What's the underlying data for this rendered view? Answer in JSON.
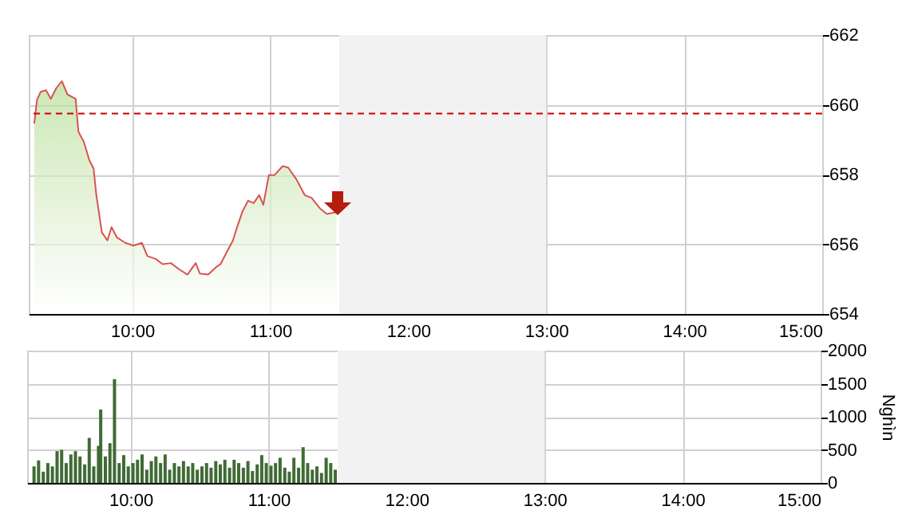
{
  "chart_data": [
    {
      "type": "area",
      "xlim": [
        9.25,
        15
      ],
      "ylim": [
        654,
        662
      ],
      "yticks": [
        654,
        656,
        658,
        660,
        662
      ],
      "grid": true,
      "xticks": [
        {
          "value": 10,
          "label": "10:00"
        },
        {
          "value": 11,
          "label": "11:00"
        },
        {
          "value": 12,
          "label": "12:00"
        },
        {
          "value": 13,
          "label": "13:00"
        },
        {
          "value": 14,
          "label": "14:00"
        },
        {
          "value": 15,
          "label": "15:00"
        }
      ],
      "ref_lines": [
        {
          "axis": "y",
          "value": 659.75,
          "color": "#cc0000",
          "line_style": "dashed"
        }
      ],
      "bands": [
        {
          "axis": "x",
          "from": 11.5,
          "to": 13,
          "color": "#f2f2f2"
        }
      ],
      "series": [
        {
          "color": "#d9534f",
          "x": [
            9.29,
            9.31,
            9.336,
            9.375,
            9.41,
            9.45,
            9.49,
            9.53,
            9.59,
            9.61,
            9.65,
            9.69,
            9.72,
            9.74,
            9.78,
            9.82,
            9.85,
            9.89,
            9.95,
            10.01,
            10.07,
            10.11,
            10.17,
            10.22,
            10.28,
            10.34,
            10.4,
            10.46,
            10.49,
            10.55,
            10.61,
            10.64,
            10.69,
            10.73,
            10.76,
            10.8,
            10.84,
            10.88,
            10.92,
            10.95,
            10.99,
            11.03,
            11.09,
            11.13,
            11.19,
            11.25,
            11.3,
            11.36,
            11.41,
            11.48
          ],
          "values": [
            659.46,
            660.14,
            660.37,
            660.42,
            660.17,
            660.48,
            660.68,
            660.3,
            660.17,
            659.23,
            658.93,
            658.4,
            658.17,
            657.41,
            656.34,
            656.11,
            656.49,
            656.19,
            656.04,
            655.96,
            656.04,
            655.66,
            655.58,
            655.43,
            655.46,
            655.28,
            655.13,
            655.46,
            655.16,
            655.13,
            655.35,
            655.43,
            655.81,
            656.11,
            656.49,
            656.95,
            657.25,
            657.18,
            657.41,
            657.13,
            657.98,
            657.98,
            658.24,
            658.2,
            657.86,
            657.41,
            657.33,
            657.03,
            656.87,
            656.92
          ]
        }
      ]
    },
    {
      "type": "bar",
      "ylabel": "Nghìn",
      "xlim": [
        9.25,
        15
      ],
      "ylim": [
        0,
        2000
      ],
      "yticks": [
        0,
        500,
        1000,
        1500,
        2000
      ],
      "grid": true,
      "xticks": [
        {
          "value": 10,
          "label": "10:00"
        },
        {
          "value": 11,
          "label": "11:00"
        },
        {
          "value": 12,
          "label": "12:00"
        },
        {
          "value": 13,
          "label": "13:00"
        },
        {
          "value": 14,
          "label": "14:00"
        },
        {
          "value": 15,
          "label": "15:00"
        }
      ],
      "bands": [
        {
          "axis": "x",
          "from": 11.5,
          "to": 13,
          "color": "#f2f2f2"
        }
      ],
      "series": [
        {
          "color": "#3f6b35",
          "x": [
            9.3,
            9.333,
            9.367,
            9.4,
            9.433,
            9.467,
            9.5,
            9.533,
            9.567,
            9.6,
            9.633,
            9.667,
            9.7,
            9.733,
            9.767,
            9.783,
            9.817,
            9.85,
            9.883,
            9.917,
            9.95,
            9.983,
            10.017,
            10.05,
            10.083,
            10.117,
            10.15,
            10.183,
            10.217,
            10.25,
            10.283,
            10.317,
            10.35,
            10.383,
            10.417,
            10.45,
            10.483,
            10.517,
            10.55,
            10.583,
            10.617,
            10.65,
            10.683,
            10.717,
            10.75,
            10.783,
            10.817,
            10.85,
            10.883,
            10.917,
            10.95,
            10.983,
            11.017,
            11.05,
            11.083,
            11.117,
            11.15,
            11.183,
            11.217,
            11.25,
            11.283,
            11.317,
            11.35,
            11.383,
            11.417,
            11.45,
            11.483
          ],
          "values": [
            250,
            340,
            170,
            300,
            250,
            480,
            500,
            300,
            430,
            480,
            400,
            280,
            680,
            250,
            560,
            1110,
            400,
            600,
            1570,
            300,
            420,
            250,
            300,
            350,
            430,
            200,
            330,
            400,
            300,
            430,
            200,
            300,
            250,
            330,
            250,
            300,
            200,
            250,
            300,
            230,
            330,
            280,
            350,
            230,
            350,
            300,
            230,
            330,
            180,
            280,
            420,
            300,
            260,
            300,
            380,
            230,
            170,
            380,
            230,
            540,
            300,
            200,
            250,
            150,
            380,
            300,
            200
          ]
        }
      ]
    }
  ]
}
